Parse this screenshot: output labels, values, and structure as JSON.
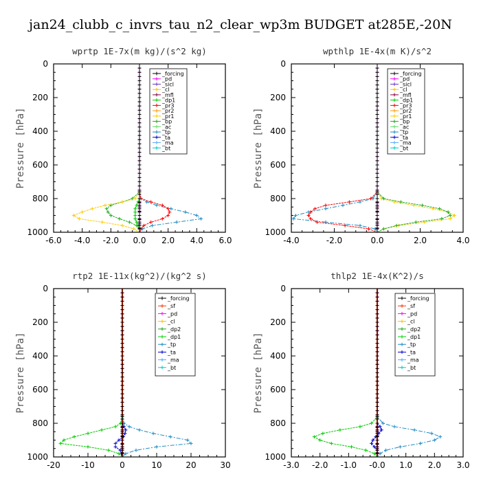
{
  "title": "jan24_clubb_c_invrs_tau_n2_clear_wp3m  BUDGET at285E,-20N",
  "panels": [
    {
      "id": "wprtp",
      "title": "wprtp   1E-7x(m kg)/(s^2 kg)",
      "xlim": [
        -6,
        6
      ],
      "ylim": [
        1000,
        0
      ],
      "xticks": [
        "-6.0",
        "-4.0",
        "-2.0",
        "0.0",
        "2.0",
        "4.0",
        "6.0"
      ],
      "xtick_values": [
        -6,
        -4,
        -2,
        0,
        2,
        4,
        6
      ],
      "yticks": [
        "0",
        "200",
        "400",
        "600",
        "800",
        "1000"
      ],
      "ylabel": "Pressure [hPa]",
      "legend": [
        "_forcing",
        "_pd",
        "_sicl",
        "_cl",
        "_mfl",
        "_dp1",
        "_pr3",
        "_pr2",
        "_pr1",
        "_bp",
        "_ac",
        "_tp",
        "_ta",
        "_ma",
        "_bt"
      ]
    },
    {
      "id": "wpthlp",
      "title": "wpthlp   1E-4x(m K)/s^2",
      "xlim": [
        -4,
        4
      ],
      "ylim": [
        1000,
        0
      ],
      "xticks": [
        "-4.0",
        "-2.0",
        "0.0",
        "2.0",
        "4.0"
      ],
      "xtick_values": [
        -4,
        -2,
        0,
        2,
        4
      ],
      "yticks": [
        "0",
        "200",
        "400",
        "600",
        "800",
        "1000"
      ],
      "ylabel": "Pressure [hPa]",
      "legend": [
        "_forcing",
        "_pd",
        "_sicl",
        "_cl",
        "_mfl",
        "_dp1",
        "_pr3",
        "_pr2",
        "_pr1",
        "_bp",
        "_ac",
        "_tp",
        "_ta",
        "_ma",
        "_bt"
      ]
    },
    {
      "id": "rtp2",
      "title": "rtp2   1E-11x(kg^2)/(kg^2 s)",
      "xlim": [
        -20,
        30
      ],
      "ylim": [
        1000,
        0
      ],
      "xticks": [
        "-20",
        "-10",
        "0",
        "10",
        "20",
        "30"
      ],
      "xtick_values": [
        -20,
        -10,
        0,
        10,
        20,
        30
      ],
      "yticks": [
        "0",
        "200",
        "400",
        "600",
        "800",
        "1000"
      ],
      "ylabel": "Pressure [hPa]",
      "legend": [
        "_forcing",
        "_sf",
        "_pd",
        "_cl",
        "_dp2",
        "_dp1",
        "_tp",
        "_ta",
        "_ma",
        "_bt"
      ]
    },
    {
      "id": "thlp2",
      "title": "thlp2   1E-4x(K^2)/s",
      "xlim": [
        -3,
        3
      ],
      "ylim": [
        1000,
        0
      ],
      "xticks": [
        "-3.0",
        "-2.0",
        "-1.0",
        "-0.0",
        "1.0",
        "2.0",
        "3.0"
      ],
      "xtick_values": [
        -3,
        -2,
        -1,
        0,
        1,
        2,
        3
      ],
      "yticks": [
        "0",
        "200",
        "400",
        "600",
        "800",
        "1000"
      ],
      "ylabel": "Pressure [hPa]",
      "legend": [
        "_forcing",
        "_sf",
        "_pd",
        "_cl",
        "_dp2",
        "_dp1",
        "_tp",
        "_ta",
        "_ma",
        "_bt"
      ]
    }
  ],
  "series_colors": {
    "_forcing": "#000000",
    "_pd": "#ff00ff",
    "_sicl": "#6633cc",
    "_cl": "#ffbf00",
    "_mfl": "#8b0040",
    "_dp1": "#00cc00",
    "_dp2": "#22aa22",
    "_pr3": "#ff0000",
    "_pr2": "#ff9900",
    "_pr1": "#ffcc00",
    "_bp": "#22aa22",
    "_ac": "#66dd66",
    "_tp": "#1e8bc3",
    "_ta": "#0000cc",
    "_ma": "#55aaff",
    "_bt": "#00cccc",
    "_sf": "#ff3300"
  },
  "chart_data": [
    {
      "type": "line",
      "title": "wprtp   1E-7x(m kg)/(s^2 kg)",
      "ylabel": "Pressure [hPa]",
      "xlim": [
        -6,
        6
      ],
      "ylim": [
        1000,
        0
      ],
      "y": [
        0,
        100,
        200,
        300,
        400,
        500,
        600,
        700,
        760,
        800,
        820,
        840,
        860,
        880,
        900,
        920,
        940,
        960,
        980,
        1000
      ],
      "series": [
        {
          "name": "_forcing",
          "color": "#000000",
          "x": [
            0,
            0,
            0,
            0,
            0,
            0,
            0,
            0,
            0,
            0,
            0,
            0,
            0,
            0,
            0,
            0,
            0,
            0,
            0,
            0
          ]
        },
        {
          "name": "_pr1",
          "color": "#ffcc00",
          "x": [
            0,
            0,
            0,
            0,
            0,
            0,
            0,
            0,
            0,
            -0.3,
            -1.2,
            -2.4,
            -3.3,
            -4.0,
            -4.6,
            -4.2,
            -2.6,
            -1.2,
            -0.4,
            0
          ]
        },
        {
          "name": "_bp",
          "color": "#22aa22",
          "x": [
            0,
            0,
            0,
            0,
            0,
            0,
            0,
            0,
            0,
            -0.5,
            -1.2,
            -2.0,
            -2.3,
            -2.2,
            -2.0,
            -1.4,
            -0.7,
            -0.2,
            0,
            0
          ]
        },
        {
          "name": "_pr3",
          "color": "#ff0000",
          "x": [
            0,
            0,
            0,
            0,
            0,
            0,
            0,
            0,
            0,
            0.1,
            0.8,
            1.6,
            2.0,
            2.1,
            2.0,
            1.6,
            0.8,
            0.3,
            0.1,
            0
          ]
        },
        {
          "name": "_tp",
          "color": "#1e8bc3",
          "x": [
            0,
            0,
            0,
            0,
            0,
            0,
            0,
            0,
            0,
            0.1,
            0.5,
            1.2,
            2.2,
            3.2,
            4.0,
            4.3,
            2.6,
            0.9,
            0.2,
            0
          ]
        },
        {
          "name": "_dp1",
          "color": "#00cc00",
          "x": [
            0,
            0,
            0,
            0,
            0,
            0,
            0,
            0,
            0,
            0,
            -0.1,
            -0.2,
            -0.3,
            -0.3,
            -0.3,
            -0.3,
            -0.2,
            -0.1,
            0,
            0
          ]
        },
        {
          "name": "_pd",
          "color": "#ff00ff",
          "x": [
            0,
            0,
            0,
            0,
            0,
            0,
            0,
            0,
            0,
            0,
            0,
            0,
            0,
            0,
            0,
            0,
            0,
            0,
            0,
            0
          ]
        }
      ]
    },
    {
      "type": "line",
      "title": "wpthlp   1E-4x(m K)/s^2",
      "ylabel": "Pressure [hPa]",
      "xlim": [
        -4,
        4
      ],
      "ylim": [
        1000,
        0
      ],
      "y": [
        0,
        100,
        200,
        300,
        400,
        500,
        600,
        700,
        760,
        800,
        820,
        840,
        860,
        880,
        900,
        920,
        940,
        960,
        980,
        1000
      ],
      "series": [
        {
          "name": "_forcing",
          "color": "#000000",
          "x": [
            0,
            0,
            0,
            0,
            0,
            0,
            0,
            0,
            0,
            0,
            0,
            0,
            0,
            0,
            0,
            0,
            0,
            0,
            0,
            0
          ]
        },
        {
          "name": "_pr3",
          "color": "#ff0000",
          "x": [
            0,
            0,
            0,
            0,
            0,
            0,
            0,
            0,
            0,
            -0.3,
            -1.3,
            -2.4,
            -2.9,
            -3.1,
            -3.2,
            -3.1,
            -2.8,
            -1.5,
            -0.4,
            0
          ]
        },
        {
          "name": "_tp",
          "color": "#1e8bc3",
          "x": [
            0,
            0,
            0,
            0,
            0,
            0,
            0,
            0,
            0,
            -0.2,
            -0.8,
            -1.6,
            -2.4,
            -3.2,
            -3.8,
            -3.9,
            -2.4,
            -0.8,
            -0.1,
            0
          ]
        },
        {
          "name": "_bp",
          "color": "#22aa22",
          "x": [
            0,
            0,
            0,
            0,
            0,
            0,
            0,
            0,
            0,
            0.3,
            1.1,
            2.1,
            2.9,
            3.3,
            3.4,
            3.0,
            1.8,
            0.9,
            0.3,
            0
          ]
        },
        {
          "name": "_pr1",
          "color": "#ffcc00",
          "x": [
            0,
            0,
            0,
            0,
            0,
            0,
            0,
            0,
            0,
            0.2,
            0.8,
            1.7,
            2.6,
            3.3,
            3.6,
            3.4,
            2.2,
            1.0,
            0.3,
            0
          ]
        },
        {
          "name": "_pd",
          "color": "#ff00ff",
          "x": [
            0,
            0,
            0,
            0,
            0,
            0,
            0,
            0,
            0,
            0,
            0,
            0,
            0,
            0,
            0,
            0,
            0,
            0,
            0,
            0
          ]
        }
      ]
    },
    {
      "type": "line",
      "title": "rtp2   1E-11x(kg^2)/(kg^2 s)",
      "ylabel": "Pressure [hPa]",
      "xlim": [
        -20,
        30
      ],
      "ylim": [
        1000,
        0
      ],
      "y": [
        0,
        100,
        200,
        300,
        400,
        500,
        600,
        700,
        760,
        800,
        820,
        840,
        860,
        880,
        900,
        920,
        940,
        960,
        980,
        1000
      ],
      "series": [
        {
          "name": "_forcing",
          "color": "#000000",
          "x": [
            0,
            0,
            0,
            0,
            0,
            0,
            0,
            0,
            0,
            0,
            0,
            0,
            0,
            0,
            0,
            0,
            0,
            0,
            0,
            0
          ]
        },
        {
          "name": "_dp1",
          "color": "#00cc00",
          "x": [
            0,
            0,
            0,
            0,
            0,
            0,
            0,
            0,
            0,
            -0.5,
            -2,
            -6,
            -10,
            -14,
            -17,
            -18,
            -10,
            -4,
            -1,
            0
          ]
        },
        {
          "name": "_tp",
          "color": "#1e8bc3",
          "x": [
            0,
            0,
            0,
            0,
            0,
            0,
            0,
            0,
            0,
            0.5,
            2,
            5,
            9,
            14,
            19,
            20,
            10,
            4,
            1,
            0
          ]
        },
        {
          "name": "_ta",
          "color": "#0000cc",
          "x": [
            0,
            0,
            0,
            0,
            0,
            0,
            0,
            0,
            0,
            0,
            0.5,
            1,
            0.8,
            0.3,
            -1,
            -2,
            -2,
            -0.6,
            -0.3,
            0
          ]
        },
        {
          "name": "_pd",
          "color": "#ff00ff",
          "x": [
            0,
            0,
            0,
            0,
            0,
            0,
            0,
            0,
            0,
            0,
            0,
            0,
            0,
            0,
            0,
            0,
            0,
            0,
            0,
            0
          ]
        },
        {
          "name": "_sf",
          "color": "#ff3300",
          "x": [
            0,
            0,
            0,
            0,
            0,
            0,
            0,
            0,
            0,
            0,
            0,
            0,
            0,
            0,
            0,
            0,
            0,
            0,
            0,
            0
          ]
        }
      ]
    },
    {
      "type": "line",
      "title": "thlp2   1E-4x(K^2)/s",
      "ylabel": "Pressure [hPa]",
      "xlim": [
        -3,
        3
      ],
      "ylim": [
        1000,
        0
      ],
      "y": [
        0,
        100,
        200,
        300,
        400,
        500,
        600,
        700,
        760,
        800,
        820,
        840,
        860,
        880,
        900,
        920,
        940,
        960,
        980,
        1000
      ],
      "series": [
        {
          "name": "_forcing",
          "color": "#000000",
          "x": [
            0,
            0,
            0,
            0,
            0,
            0,
            0,
            0,
            0,
            0,
            0,
            0,
            0,
            0,
            0,
            0,
            0,
            0,
            0,
            0
          ]
        },
        {
          "name": "_dp1",
          "color": "#00cc00",
          "x": [
            0,
            0,
            0,
            0,
            0,
            0,
            0,
            0,
            0,
            -0.2,
            -0.6,
            -1.3,
            -1.9,
            -2.2,
            -2.0,
            -1.6,
            -0.9,
            -0.4,
            -0.1,
            0
          ]
        },
        {
          "name": "_tp",
          "color": "#1e8bc3",
          "x": [
            0,
            0,
            0,
            0,
            0,
            0,
            0,
            0,
            0,
            0.2,
            0.6,
            1.3,
            1.9,
            2.2,
            2.0,
            1.5,
            0.8,
            0.3,
            0.1,
            0
          ]
        },
        {
          "name": "_ta",
          "color": "#0000cc",
          "x": [
            0,
            0,
            0,
            0,
            0,
            0,
            0,
            0,
            0,
            0,
            0.1,
            0.15,
            0.05,
            -0.05,
            -0.15,
            -0.2,
            -0.1,
            0,
            0,
            0
          ]
        },
        {
          "name": "_pd",
          "color": "#ff00ff",
          "x": [
            0,
            0,
            0,
            0,
            0,
            0,
            0,
            0,
            0,
            0,
            0,
            0,
            0,
            0,
            0,
            0,
            0,
            0,
            0,
            0
          ]
        },
        {
          "name": "_sf",
          "color": "#ff3300",
          "x": [
            0,
            0,
            0,
            0,
            0,
            0,
            0,
            0,
            0,
            0,
            0,
            0,
            0,
            0,
            0,
            0,
            0,
            0,
            0,
            0
          ]
        }
      ]
    }
  ]
}
